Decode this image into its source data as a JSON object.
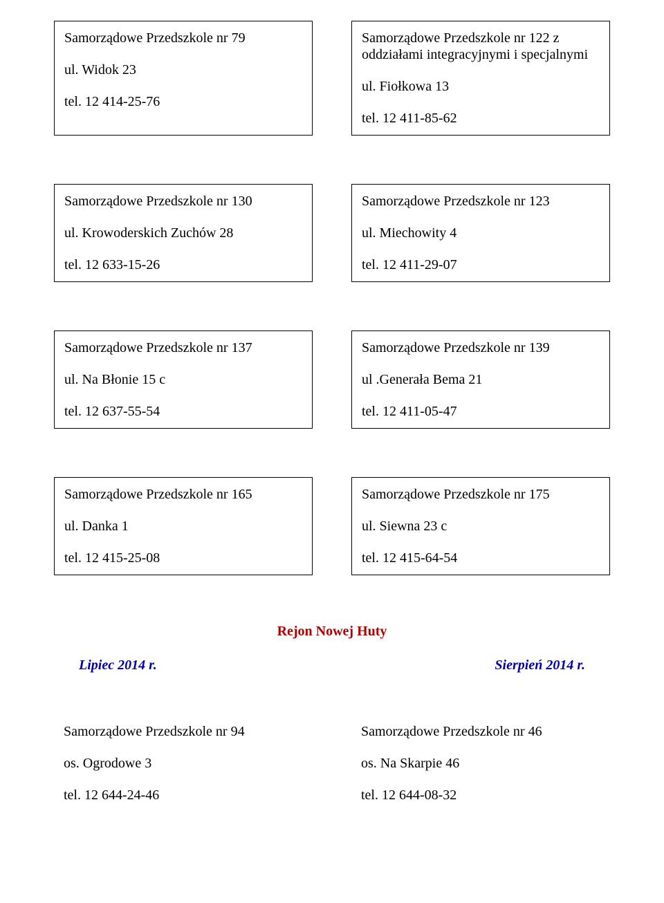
{
  "rows": [
    {
      "left": {
        "name": "Samorządowe Przedszkole nr 79",
        "address": "ul. Widok 23",
        "phone": "tel. 12 414-25-76"
      },
      "right": {
        "name": "Samorządowe Przedszkole nr 122 z oddziałami integracyjnymi i specjalnymi",
        "address": "ul. Fiołkowa 13",
        "phone": "tel. 12 411-85-62"
      }
    },
    {
      "left": {
        "name": "Samorządowe Przedszkole nr 130",
        "address": "ul. Krowoderskich Zuchów 28",
        "phone": "tel. 12 633-15-26"
      },
      "right": {
        "name": "Samorządowe Przedszkole nr 123",
        "address": "ul. Miechowity 4",
        "phone": "tel. 12 411-29-07"
      }
    },
    {
      "left": {
        "name": "Samorządowe Przedszkole nr 137",
        "address": "ul. Na Błonie 15 c",
        "phone": "tel. 12 637-55-54"
      },
      "right": {
        "name": "Samorządowe Przedszkole nr 139",
        "address": "ul .Generała Bema 21",
        "phone": " tel. 12 411-05-47"
      }
    },
    {
      "left": {
        "name": "Samorządowe Przedszkole nr 165",
        "address": "ul. Danka 1",
        "phone": "tel. 12 415-25-08"
      },
      "right": {
        "name": "Samorządowe Przedszkole nr 175",
        "address": "ul. Siewna 23 c",
        "phone": "tel. 12 415-64-54"
      }
    }
  ],
  "section_title": "Rejon Nowej Huty",
  "months": {
    "left": "Lipiec 2014 r.",
    "right": "Sierpień 2014 r."
  },
  "bottom": {
    "left": {
      "name": "Samorządowe Przedszkole nr 94",
      "address": "os. Ogrodowe 3",
      "phone": "tel. 12 644-24-46"
    },
    "right": {
      "name": "Samorządowe Przedszkole nr 46",
      "address": "os. Na Skarpie 46",
      "phone": "tel. 12 644-08-32"
    }
  }
}
